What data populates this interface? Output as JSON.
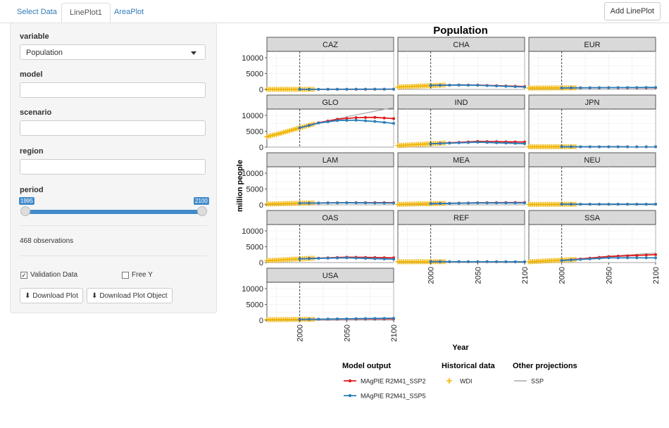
{
  "tabs": [
    "Select Data",
    "LinePlot1",
    "AreaPlot"
  ],
  "active_tab": 1,
  "add_button": "Add LinePlot",
  "sidebar": {
    "variable_label": "variable",
    "variable_value": "Population",
    "model_label": "model",
    "model_value": "",
    "scenario_label": "scenario",
    "scenario_value": "",
    "region_label": "region",
    "region_value": "",
    "period_label": "period",
    "period_min": "1995",
    "period_max": "2100",
    "observations": "468 observations",
    "validation_label": "Validation Data",
    "validation_checked": true,
    "freey_label": "Free Y",
    "freey_checked": false,
    "download_plot": "Download Plot",
    "download_object": "Download Plot Object"
  },
  "chart_data": {
    "type": "line",
    "title": "Population",
    "xlabel": "Year",
    "ylabel": "million people",
    "xlim": [
      1965,
      2100
    ],
    "xticks": [
      2000,
      2050,
      2100
    ],
    "yticks": [
      0,
      5000,
      10000
    ],
    "ylim": [
      0,
      12000
    ],
    "vline": 2000,
    "legend": {
      "groups": [
        {
          "title": "Model output",
          "items": [
            {
              "name": "MAgPIE R2M41_SSP2",
              "color": "#e31a1c",
              "style": "line-point"
            },
            {
              "name": "MAgPIE R2M41_SSP5",
              "color": "#2c7fb8",
              "style": "line-point"
            }
          ]
        },
        {
          "title": "Historical data",
          "items": [
            {
              "name": "WDI",
              "color": "#f0b400",
              "style": "plus"
            }
          ]
        },
        {
          "title": "Other projections",
          "items": [
            {
              "name": "SSP",
              "color": "#aaaaaa",
              "style": "line"
            }
          ]
        }
      ],
      "position": "bottom"
    },
    "panels": [
      {
        "region": "CAZ",
        "ssp2": [
          [
            2000,
            30
          ],
          [
            2100,
            50
          ]
        ],
        "ssp5": [
          [
            2000,
            30
          ],
          [
            2100,
            80
          ]
        ],
        "hist": [
          [
            1965,
            25
          ],
          [
            2015,
            36
          ]
        ],
        "ssp": [
          [
            2000,
            30
          ],
          [
            2100,
            60
          ]
        ]
      },
      {
        "region": "CHA",
        "ssp2": [
          [
            2000,
            1270
          ],
          [
            2030,
            1400
          ],
          [
            2050,
            1350
          ],
          [
            2100,
            900
          ]
        ],
        "ssp5": [
          [
            2000,
            1270
          ],
          [
            2030,
            1380
          ],
          [
            2050,
            1300
          ],
          [
            2100,
            750
          ]
        ],
        "hist": [
          [
            1965,
            750
          ],
          [
            2015,
            1380
          ]
        ],
        "ssp": [
          [
            2000,
            1270
          ],
          [
            2030,
            1400
          ],
          [
            2050,
            1350
          ],
          [
            2100,
            900
          ]
        ]
      },
      {
        "region": "EUR",
        "ssp2": [
          [
            2000,
            480
          ],
          [
            2050,
            520
          ],
          [
            2100,
            520
          ]
        ],
        "ssp5": [
          [
            2000,
            480
          ],
          [
            2050,
            560
          ],
          [
            2100,
            620
          ]
        ],
        "hist": [
          [
            1965,
            420
          ],
          [
            2015,
            510
          ]
        ],
        "ssp": [
          [
            2000,
            480
          ],
          [
            2100,
            520
          ]
        ]
      },
      {
        "region": "GLO",
        "ssp2": [
          [
            2000,
            6100
          ],
          [
            2020,
            7700
          ],
          [
            2040,
            8800
          ],
          [
            2060,
            9300
          ],
          [
            2080,
            9400
          ],
          [
            2100,
            9000
          ]
        ],
        "ssp5": [
          [
            2000,
            6100
          ],
          [
            2020,
            7600
          ],
          [
            2040,
            8400
          ],
          [
            2060,
            8500
          ],
          [
            2080,
            8100
          ],
          [
            2100,
            7500
          ]
        ],
        "hist": [
          [
            1965,
            3300
          ],
          [
            1980,
            4400
          ],
          [
            2000,
            6100
          ],
          [
            2015,
            7300
          ]
        ],
        "ssp": [
          [
            2000,
            6100
          ],
          [
            2050,
            9600
          ],
          [
            2100,
            12500
          ]
        ]
      },
      {
        "region": "IND",
        "ssp2": [
          [
            2000,
            1050
          ],
          [
            2050,
            1800
          ],
          [
            2100,
            1600
          ]
        ],
        "ssp5": [
          [
            2000,
            1050
          ],
          [
            2050,
            1550
          ],
          [
            2100,
            1100
          ]
        ],
        "hist": [
          [
            1965,
            500
          ],
          [
            2015,
            1300
          ]
        ],
        "ssp": [
          [
            2000,
            1050
          ],
          [
            2050,
            1800
          ],
          [
            2100,
            1700
          ]
        ]
      },
      {
        "region": "JPN",
        "ssp2": [
          [
            2000,
            127
          ],
          [
            2100,
            100
          ]
        ],
        "ssp5": [
          [
            2000,
            127
          ],
          [
            2100,
            110
          ]
        ],
        "hist": [
          [
            1965,
            98
          ],
          [
            2015,
            127
          ]
        ],
        "ssp": [
          [
            2000,
            127
          ],
          [
            2100,
            90
          ]
        ]
      },
      {
        "region": "LAM",
        "ssp2": [
          [
            2000,
            520
          ],
          [
            2050,
            700
          ],
          [
            2100,
            680
          ]
        ],
        "ssp5": [
          [
            2000,
            520
          ],
          [
            2050,
            650
          ],
          [
            2100,
            560
          ]
        ],
        "hist": [
          [
            1965,
            250
          ],
          [
            2015,
            620
          ]
        ],
        "ssp": [
          [
            2000,
            520
          ],
          [
            2100,
            700
          ]
        ]
      },
      {
        "region": "MEA",
        "ssp2": [
          [
            2000,
            380
          ],
          [
            2050,
            650
          ],
          [
            2100,
            750
          ]
        ],
        "ssp5": [
          [
            2000,
            380
          ],
          [
            2050,
            600
          ],
          [
            2100,
            600
          ]
        ],
        "hist": [
          [
            1965,
            150
          ],
          [
            2015,
            500
          ]
        ],
        "ssp": [
          [
            2000,
            380
          ],
          [
            2100,
            750
          ]
        ]
      },
      {
        "region": "NEU",
        "ssp2": [
          [
            2000,
            190
          ],
          [
            2100,
            200
          ]
        ],
        "ssp5": [
          [
            2000,
            190
          ],
          [
            2100,
            210
          ]
        ],
        "hist": [
          [
            1965,
            140
          ],
          [
            2015,
            200
          ]
        ],
        "ssp": [
          [
            2000,
            190
          ],
          [
            2100,
            200
          ]
        ]
      },
      {
        "region": "OAS",
        "ssp2": [
          [
            2000,
            1200
          ],
          [
            2050,
            1700
          ],
          [
            2100,
            1500
          ]
        ],
        "ssp5": [
          [
            2000,
            1200
          ],
          [
            2050,
            1500
          ],
          [
            2100,
            1050
          ]
        ],
        "hist": [
          [
            1965,
            600
          ],
          [
            2015,
            1400
          ]
        ],
        "ssp": [
          [
            2000,
            1200
          ],
          [
            2050,
            1700
          ],
          [
            2100,
            1600
          ]
        ]
      },
      {
        "region": "REF",
        "ssp2": [
          [
            2000,
            290
          ],
          [
            2100,
            260
          ]
        ],
        "ssp5": [
          [
            2000,
            290
          ],
          [
            2100,
            250
          ]
        ],
        "hist": [
          [
            1965,
            250
          ],
          [
            2015,
            290
          ]
        ],
        "ssp": [
          [
            2000,
            290
          ],
          [
            2100,
            260
          ]
        ]
      },
      {
        "region": "SSA",
        "ssp2": [
          [
            2000,
            650
          ],
          [
            2050,
            1900
          ],
          [
            2100,
            2500
          ]
        ],
        "ssp5": [
          [
            2000,
            650
          ],
          [
            2050,
            1500
          ],
          [
            2100,
            1500
          ]
        ],
        "hist": [
          [
            1965,
            250
          ],
          [
            2015,
            1000
          ]
        ],
        "ssp": [
          [
            2000,
            650
          ],
          [
            2050,
            2000
          ],
          [
            2100,
            3000
          ]
        ]
      },
      {
        "region": "USA",
        "ssp2": [
          [
            2000,
            285
          ],
          [
            2050,
            400
          ],
          [
            2100,
            450
          ]
        ],
        "ssp5": [
          [
            2000,
            285
          ],
          [
            2050,
            480
          ],
          [
            2100,
            650
          ]
        ],
        "hist": [
          [
            1965,
            195
          ],
          [
            2015,
            320
          ]
        ],
        "ssp": [
          [
            2000,
            285
          ],
          [
            2100,
            450
          ]
        ]
      }
    ]
  }
}
